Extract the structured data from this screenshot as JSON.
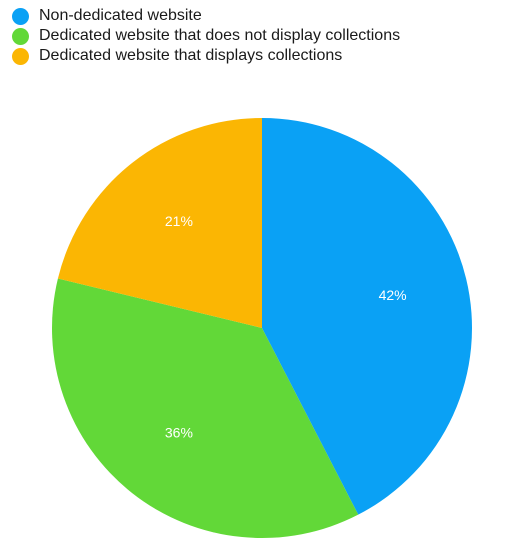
{
  "chart_data": {
    "type": "pie",
    "legend_position": "top-left",
    "slices": [
      {
        "label": "Non-dedicated website",
        "value": 42,
        "display": "42%",
        "color": "#0aa1f5"
      },
      {
        "label": "Dedicated website that does not display collections",
        "value": 36,
        "display": "36%",
        "color": "#62d838"
      },
      {
        "label": "Dedicated website that displays collections",
        "value": 21,
        "display": "21%",
        "color": "#fbb603"
      }
    ]
  }
}
